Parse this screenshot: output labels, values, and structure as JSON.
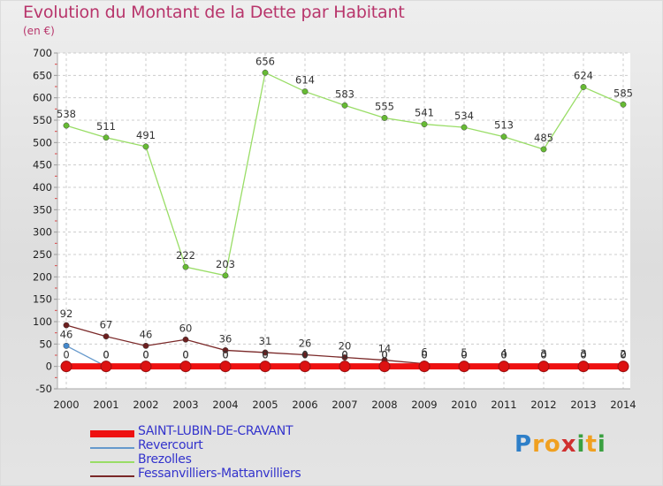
{
  "title": "Evolution du Montant de la Dette par Habitant",
  "subtitle": "(en €)",
  "logo": {
    "text": "Proxiti",
    "colors": [
      "#2e7fc8",
      "#f0a020",
      "#d03030",
      "#3aa040"
    ]
  },
  "chart_data": {
    "type": "line",
    "x": [
      "2000",
      "2001",
      "2002",
      "2003",
      "2004",
      "2005",
      "2006",
      "2007",
      "2008",
      "2009",
      "2010",
      "2011",
      "2012",
      "2013",
      "2014"
    ],
    "ylim": [
      -50,
      700
    ],
    "yticks": [
      -50,
      0,
      50,
      100,
      150,
      200,
      250,
      300,
      350,
      400,
      450,
      500,
      550,
      600,
      650,
      700
    ],
    "grid": true,
    "legend": "bottom-left",
    "series": [
      {
        "name": "Brezolles",
        "color": "#99dd66",
        "marker": "#66bb33",
        "values": [
          538,
          511,
          491,
          222,
          203,
          656,
          614,
          583,
          555,
          541,
          534,
          513,
          485,
          624,
          585
        ],
        "labels": [
          "538",
          "511",
          "491",
          "222",
          "203",
          "656",
          "614",
          "583",
          "555",
          "541",
          "534",
          "513",
          "485",
          "624",
          "585"
        ]
      },
      {
        "name": "Fessanvilliers-Mattanvilliers",
        "color": "#7a2828",
        "marker": "#6b1f1f",
        "values": [
          92,
          67,
          46,
          60,
          36,
          31,
          26,
          20,
          14,
          6,
          5,
          4,
          3,
          3,
          2
        ],
        "labels": [
          "92",
          "67",
          "46",
          "60",
          "36",
          "31",
          "26",
          "20",
          "14",
          "6",
          "5",
          "4",
          "3",
          "3",
          "2"
        ]
      },
      {
        "name": "Revercourt",
        "color": "#6699cc",
        "marker": "#4488cc",
        "values": [
          46,
          0,
          0,
          0,
          0,
          0,
          0,
          0,
          0,
          0,
          0,
          0,
          0,
          0,
          0
        ],
        "labels": [
          "46",
          "0",
          "0",
          "0",
          "0",
          "0",
          "0",
          "0",
          "0",
          "0",
          "0",
          "0",
          "0",
          "0",
          "0"
        ]
      },
      {
        "name": "SAINT-LUBIN-DE-CRAVANT",
        "color": "#ee1111",
        "marker": "#ee1111",
        "values": [
          0,
          0,
          0,
          0,
          0,
          0,
          0,
          0,
          0,
          0,
          0,
          0,
          0,
          0,
          0
        ],
        "labels": [
          "0",
          "0",
          "0",
          "0",
          "0",
          "0",
          "0",
          "0",
          "0",
          "0",
          "0",
          "0",
          "0",
          "0",
          "0"
        ]
      }
    ],
    "legend_order": [
      "SAINT-LUBIN-DE-CRAVANT",
      "Revercourt",
      "Brezolles",
      "Fessanvilliers-Mattanvilliers"
    ]
  }
}
